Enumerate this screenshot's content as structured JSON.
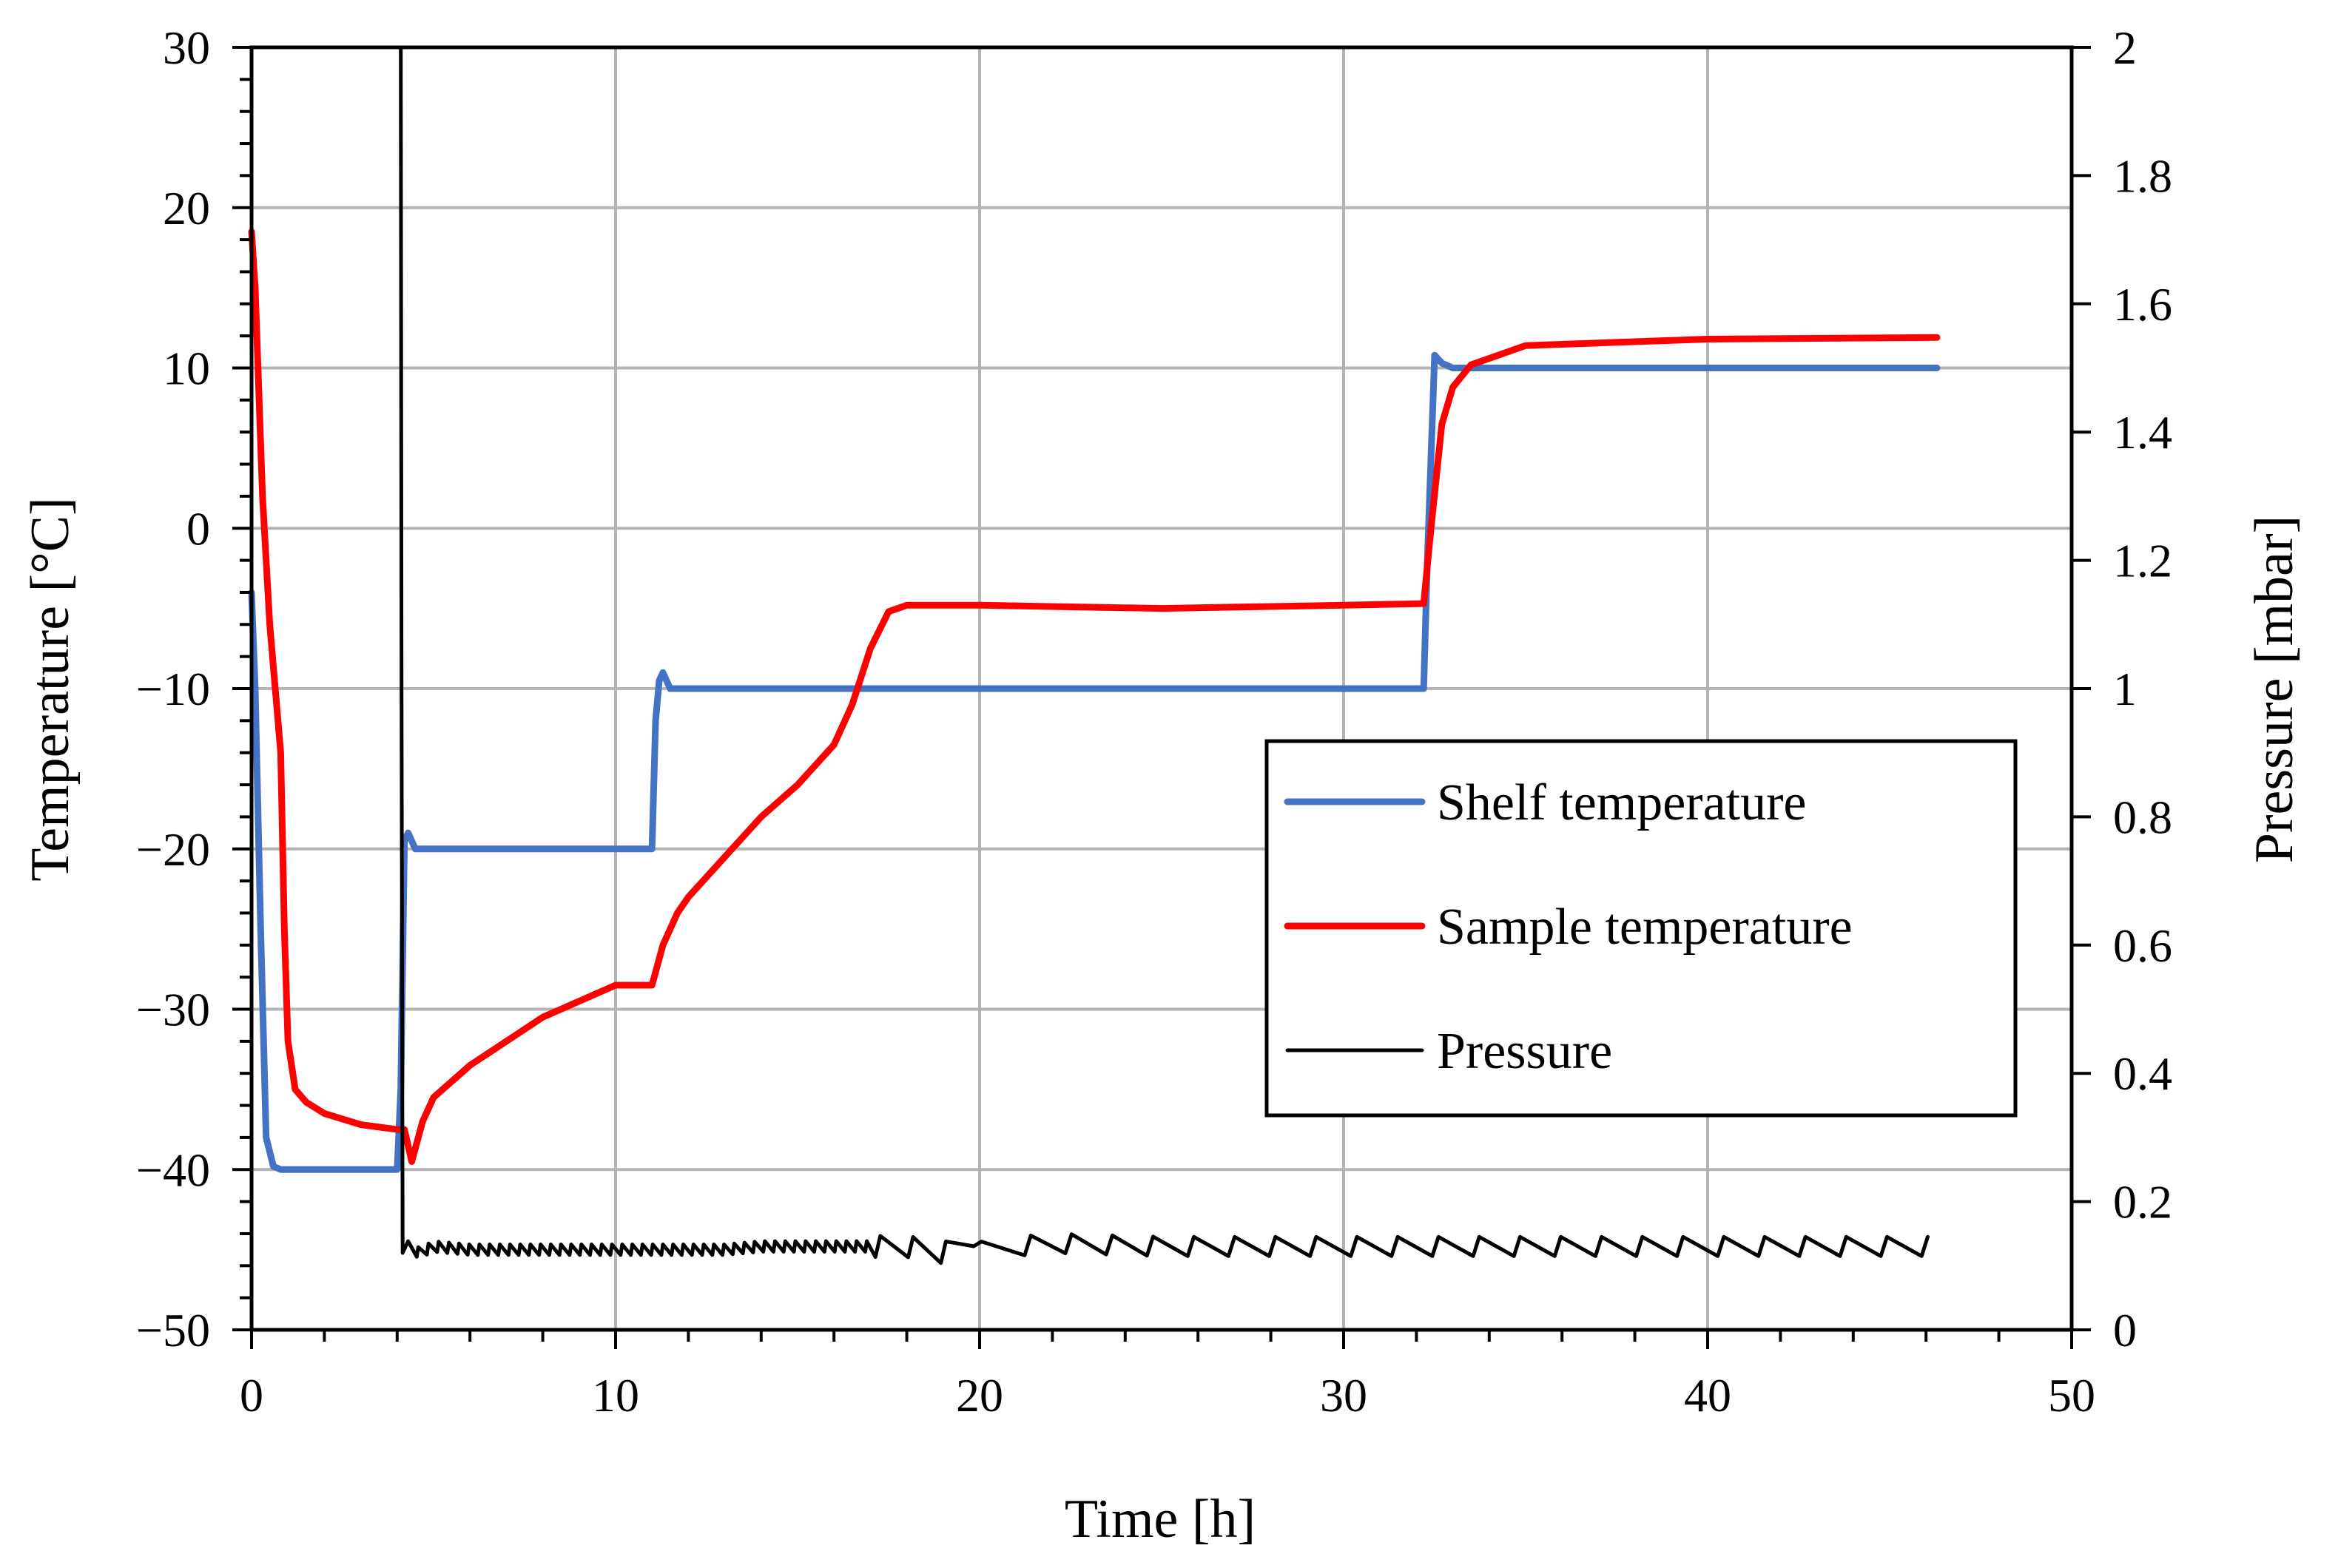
{
  "chart_data": {
    "type": "line",
    "title": "",
    "xlabel": "Time [h]",
    "ylabel": "Temperature [°C]",
    "y2label": "Pressure [mbar]",
    "xlim": [
      0,
      50
    ],
    "ylim": [
      -50,
      30
    ],
    "y2lim": [
      0,
      2
    ],
    "grid": true,
    "legend_position": "center-right",
    "x_ticks": [
      "0",
      "10",
      "20",
      "30",
      "40",
      "50"
    ],
    "y_ticks": [
      "30",
      "20",
      "10",
      "0",
      "−10",
      "−20",
      "−30",
      "−40",
      "−50"
    ],
    "y2_ticks": [
      "2",
      "1.8",
      "1.6",
      "1.4",
      "1.2",
      "1",
      "0.8",
      "0.6",
      "0.4",
      "0.2",
      "0"
    ],
    "series": [
      {
        "name": "Shelf temperature",
        "axis": "left",
        "color": "#4472C4",
        "x": [
          0,
          0.1,
          0.25,
          0.4,
          0.6,
          0.8,
          1.0,
          1.5,
          2.0,
          3.0,
          4.0,
          4.1,
          4.2,
          4.3,
          4.5,
          5.0,
          7.0,
          9.0,
          11.0,
          11.1,
          11.2,
          11.3,
          11.5,
          12.0,
          15.0,
          20.0,
          25.0,
          30.0,
          32.2,
          32.3,
          32.5,
          32.7,
          33.0,
          35.0,
          40.0,
          46.3
        ],
        "y": [
          -4,
          -10,
          -25,
          -38,
          -39.8,
          -40,
          -40,
          -40,
          -40,
          -40,
          -40,
          -35,
          -19.5,
          -19,
          -20,
          -20,
          -20,
          -20,
          -20,
          -12,
          -9.5,
          -9,
          -10,
          -10,
          -10,
          -10,
          -10,
          -10,
          -10,
          -2,
          10.8,
          10.3,
          10,
          10,
          10,
          10
        ]
      },
      {
        "name": "Sample temperature",
        "axis": "left",
        "color": "#FF0000",
        "x": [
          0,
          0.1,
          0.3,
          0.5,
          0.8,
          0.9,
          1.0,
          1.2,
          1.5,
          2.0,
          3.0,
          4.0,
          4.2,
          4.4,
          4.7,
          5.0,
          6.0,
          8.0,
          10.0,
          11.0,
          11.3,
          11.7,
          12.0,
          13.0,
          14.0,
          15.0,
          16.0,
          16.5,
          17.0,
          17.5,
          18.0,
          20.0,
          25.0,
          30.0,
          32.2,
          32.4,
          32.7,
          33.0,
          33.5,
          35.0,
          40.0,
          46.3
        ],
        "y": [
          18.5,
          15,
          2,
          -6,
          -14,
          -25,
          -32,
          -35,
          -35.8,
          -36.5,
          -37.2,
          -37.5,
          -37.5,
          -39.5,
          -37,
          -35.5,
          -33.5,
          -30.5,
          -28.5,
          -28.5,
          -26,
          -24,
          -23,
          -20.5,
          -18,
          -16,
          -13.5,
          -11,
          -7.5,
          -5.2,
          -4.8,
          -4.8,
          -5,
          -4.8,
          -4.7,
          0,
          6.5,
          8.8,
          10.2,
          11.4,
          11.8,
          11.9
        ]
      },
      {
        "name": "Pressure",
        "axis": "right",
        "color": "#000000",
        "x": [
          4.1,
          4.12,
          4.15,
          4.3,
          4.6,
          5.0,
          6.0,
          7.0,
          8.0,
          9.0,
          10.0,
          11.0,
          12.0,
          13.0,
          14.0,
          15.0,
          16.0,
          17.0,
          18.0,
          19.0,
          19.5,
          20.0,
          21.0,
          22.0,
          25.0,
          30.0,
          35.0,
          40.0,
          45.0,
          46.3
        ],
        "y": [
          2.0,
          1.0,
          0.12,
          0.13,
          0.12,
          0.13,
          0.125,
          0.125,
          0.125,
          0.125,
          0.125,
          0.125,
          0.125,
          0.125,
          0.13,
          0.13,
          0.13,
          0.13,
          0.13,
          0.12,
          0.13,
          0.135,
          0.13,
          0.135,
          0.13,
          0.13,
          0.13,
          0.13,
          0.13,
          0.13
        ],
        "oscillation_amplitude": 0.03
      }
    ]
  }
}
